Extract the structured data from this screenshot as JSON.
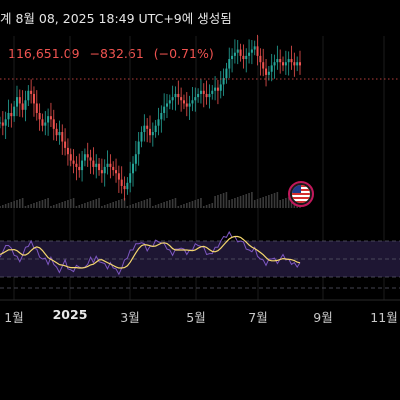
{
  "header": {
    "timestamp_text": "계 8월 08, 2025 18:49 UTC+9에 생성됨"
  },
  "quote": {
    "price": "116,651.09",
    "change": "−832.61",
    "change_pct": "(−0.71%)"
  },
  "colors": {
    "up": "#26a69a",
    "down": "#ef5350",
    "rsi_line": "#7e57c2",
    "rsi_ma": "#f5d76e",
    "price_line": "#ef5350",
    "band_fill": "#1e1633"
  },
  "icons": {
    "flag": "us-flag-icon"
  },
  "x_axis": {
    "labels": [
      "1월",
      "2025",
      "3월",
      "5월",
      "7월",
      "9월",
      "11월"
    ]
  },
  "chart_data": {
    "type": "candlestick",
    "description_of_axes": "",
    "x_ticks": [
      "1월",
      "2025",
      "3월",
      "5월",
      "7월",
      "9월",
      "11월"
    ],
    "last_price": 116651.09,
    "change": -832.61,
    "change_pct": -0.71,
    "price_series": [
      98,
      97,
      99,
      101,
      100,
      103,
      106,
      104,
      102,
      105,
      108,
      107,
      104,
      101,
      99,
      97,
      98,
      100,
      99,
      96,
      94,
      95,
      92,
      90,
      88,
      86,
      85,
      84,
      83,
      86,
      88,
      87,
      86,
      84,
      85,
      83,
      82,
      84,
      85,
      84,
      83,
      82,
      80,
      78,
      77,
      79,
      82,
      85,
      88,
      92,
      95,
      97,
      96,
      94,
      95,
      97,
      99,
      101,
      103,
      104,
      105,
      106,
      107,
      106,
      105,
      104,
      103,
      104,
      105,
      106,
      107,
      108,
      107,
      106,
      107,
      108,
      109,
      108,
      110,
      112,
      115,
      118,
      119,
      120,
      121,
      119,
      118,
      119,
      120,
      121,
      122,
      119,
      117,
      115,
      113,
      114,
      116,
      117,
      118,
      117,
      116,
      117,
      118,
      117,
      116,
      117,
      116
    ],
    "rsi_series": [
      55,
      58,
      62,
      66,
      60,
      56,
      52,
      50,
      54,
      60,
      65,
      68,
      64,
      60,
      55,
      50,
      48,
      45,
      50,
      46,
      40,
      38,
      42,
      46,
      40,
      36,
      38,
      42,
      44,
      40,
      38,
      45,
      50,
      48,
      52,
      50,
      46,
      42,
      40,
      44,
      42,
      38,
      36,
      40,
      46,
      52,
      58,
      62,
      66,
      70,
      68,
      64,
      60,
      62,
      66,
      70,
      72,
      68,
      64,
      62,
      58,
      56,
      60,
      64,
      62,
      58,
      56,
      58,
      62,
      66,
      68,
      64,
      60,
      56,
      54,
      58,
      62,
      66,
      70,
      72,
      75,
      78,
      76,
      74,
      72,
      70,
      66,
      62,
      58,
      60,
      62,
      56,
      50,
      46,
      44,
      48,
      52,
      50,
      48,
      50,
      52,
      50,
      48,
      46,
      45,
      44,
      46
    ],
    "rsi_levels": [
      70,
      50,
      30
    ],
    "volume_visible": true
  }
}
